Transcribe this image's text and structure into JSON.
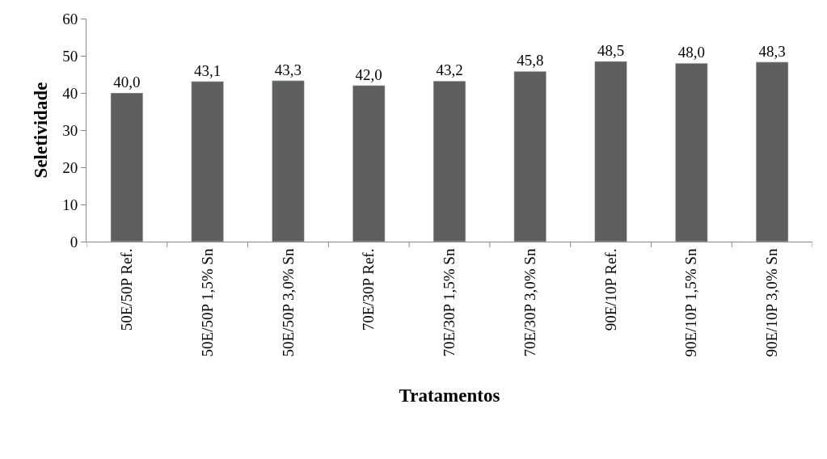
{
  "chart_data": {
    "type": "bar",
    "xlabel": "Tratamentos",
    "ylabel": "Seletividade",
    "categories": [
      "50E/50P Ref.",
      "50E/50P 1,5% Sn",
      "50E/50P 3,0% Sn",
      "70E/30P Ref.",
      "70E/30P 1,5% Sn",
      "70E/30P 3,0% Sn",
      "90E/10P Ref.",
      "90E/10P 1,5% Sn",
      "90E/10P 3,0% Sn"
    ],
    "values": [
      40.0,
      43.1,
      43.3,
      42.0,
      43.2,
      45.8,
      48.5,
      48.0,
      48.3
    ],
    "value_labels": [
      "40,0",
      "43,1",
      "43,3",
      "42,0",
      "43,2",
      "45,8",
      "48,5",
      "48,0",
      "48,3"
    ],
    "color": "#5f5f5f",
    "ylim": [
      0,
      60
    ],
    "yticks": [
      0,
      10,
      20,
      30,
      40,
      50,
      60
    ]
  }
}
